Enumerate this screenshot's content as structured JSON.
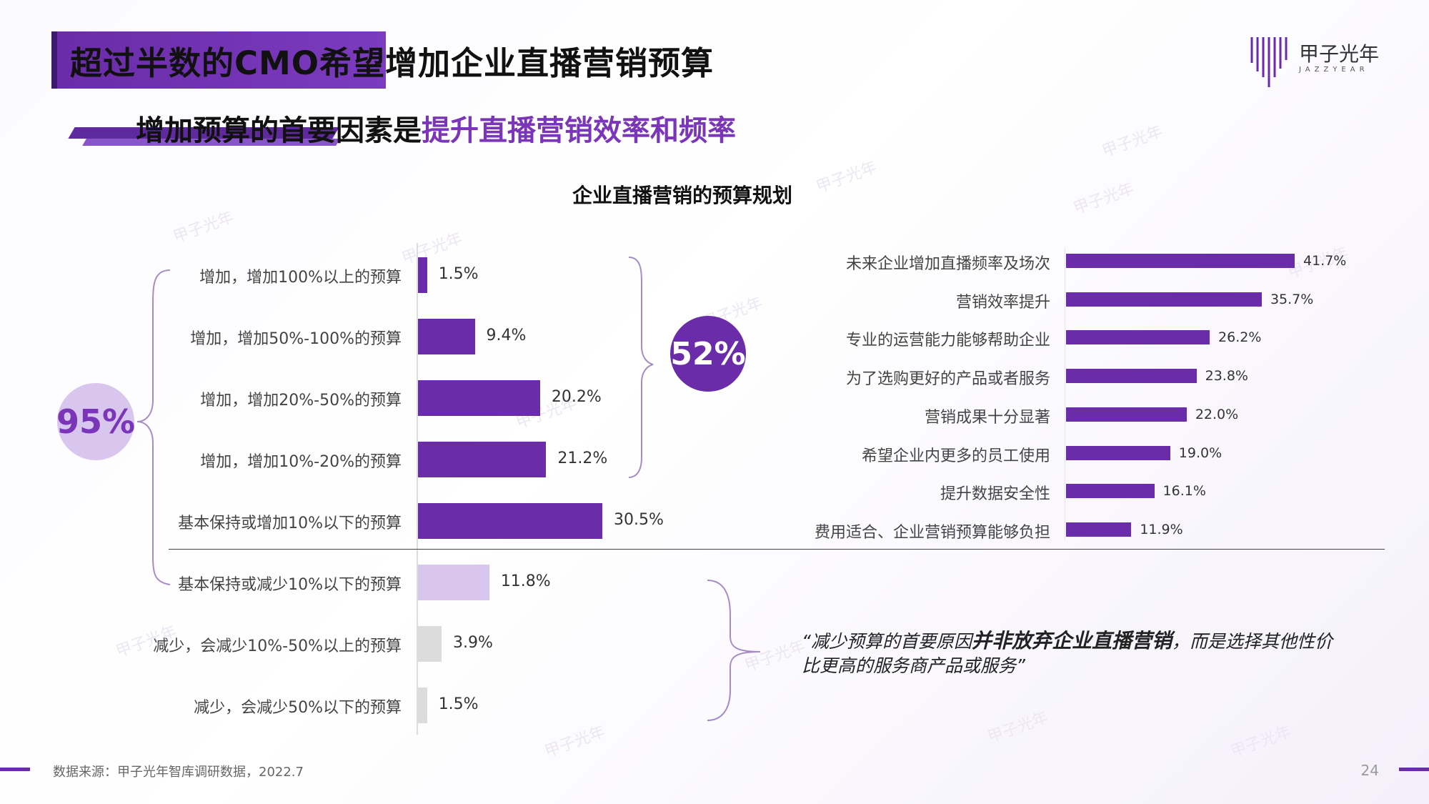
{
  "header": {
    "title": "超过半数的CMO希望增加企业直播营销预算",
    "subtitle_prefix": "增加预算的首要因素是",
    "subtitle_highlight": "提升直播营销效率和频率"
  },
  "logo": {
    "name": "甲子光年",
    "sub": "JAZZYEAR"
  },
  "callouts": {
    "increase_total": "95%",
    "top4_total": "52%"
  },
  "quote": {
    "prefix": "“减少预算的首要原因",
    "emphasis": "并非放弃企业直播营销",
    "suffix": "，而是选择其他性价比更高的服务商产品或服务”"
  },
  "footer": {
    "source": "数据来源：甲子光年智库调研数据，2022.7",
    "page": "24"
  },
  "watermark": "甲子光年",
  "colors": {
    "accent": "#6a2ca8",
    "light_accent": "#d9c6ef",
    "gray_bar": "#dcdcdc"
  },
  "chart_data": [
    {
      "type": "bar",
      "orientation": "horizontal",
      "title": "企业直播营销的预算规划",
      "categories": [
        "增加，增加100%以上的预算",
        "增加，增加50%-100%的预算",
        "增加，增加20%-50%的预算",
        "增加，增加10%-20%的预算",
        "基本保持或增加10%以下的预算",
        "基本保持或减少10%以下的预算",
        "减少，会减少10%-50%以上的预算",
        "减少，会减少50%以下的预算"
      ],
      "values": [
        1.5,
        9.4,
        20.2,
        21.2,
        30.5,
        11.8,
        3.9,
        1.5
      ],
      "value_labels": [
        "1.5%",
        "9.4%",
        "20.2%",
        "21.2%",
        "30.5%",
        "11.8%",
        "3.9%",
        "1.5%"
      ],
      "bar_colors": [
        "#6a2ca8",
        "#6a2ca8",
        "#6a2ca8",
        "#6a2ca8",
        "#6a2ca8",
        "#d9c6ef",
        "#dcdcdc",
        "#dcdcdc"
      ],
      "xlim": [
        0,
        30.5
      ]
    },
    {
      "type": "bar",
      "orientation": "horizontal",
      "title": "",
      "categories": [
        "未来企业增加直播频率及场次",
        "营销效率提升",
        "专业的运营能力能够帮助企业",
        "为了选购更好的产品或者服务",
        "营销成果十分显著",
        "希望企业内更多的员工使用",
        "提升数据安全性",
        "费用适合、企业营销预算能够负担"
      ],
      "values": [
        41.7,
        35.7,
        26.2,
        23.8,
        22.0,
        19.0,
        16.1,
        11.9
      ],
      "value_labels": [
        "41.7%",
        "35.7%",
        "26.2%",
        "23.8%",
        "22.0%",
        "19.0%",
        "16.1%",
        "11.9%"
      ],
      "xlim": [
        0,
        41.7
      ]
    }
  ]
}
